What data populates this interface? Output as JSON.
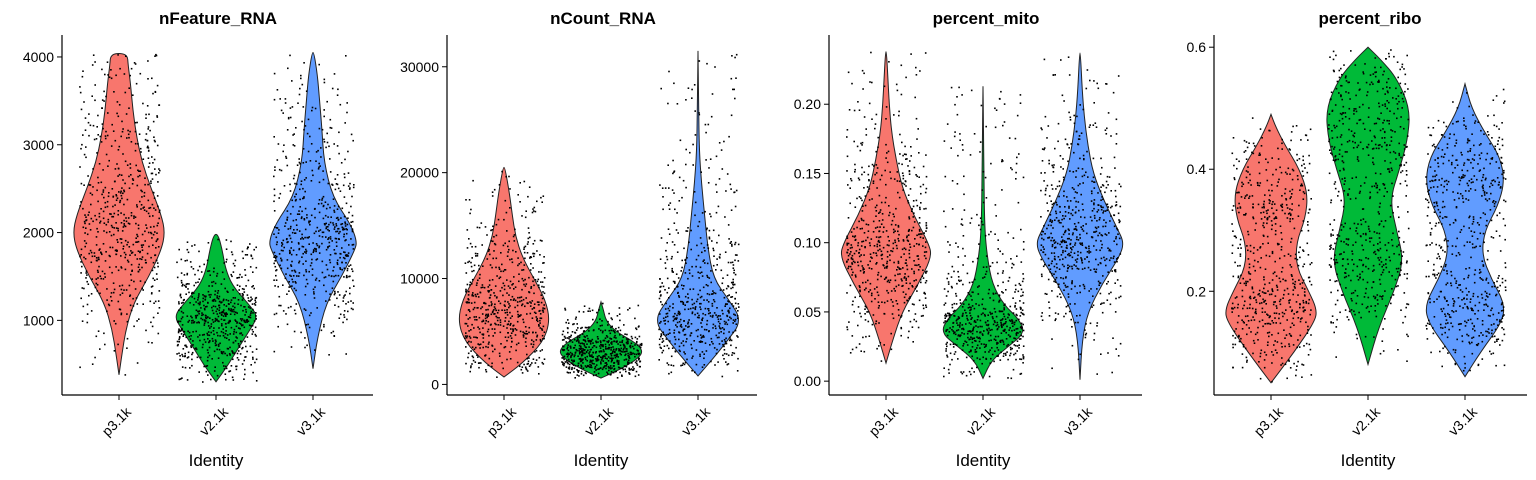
{
  "chart_data": [
    {
      "type": "violin",
      "title": "nFeature_RNA",
      "xlabel": "Identity",
      "ylabel": "",
      "categories": [
        "p3.1k",
        "v2.1k",
        "v3.1k"
      ],
      "colors": [
        "#F8766D",
        "#00BA38",
        "#619CFF"
      ],
      "ylim": [
        150,
        4250
      ],
      "yticks": [
        "1000",
        "2000",
        "3000",
        "4000"
      ],
      "ytick_values": [
        1000,
        2000,
        3000,
        4000
      ],
      "violins": [
        {
          "name": "p3.1k",
          "min": 380,
          "max": 4040,
          "profile": [
            [
              380,
              0.0
            ],
            [
              600,
              0.06
            ],
            [
              900,
              0.15
            ],
            [
              1200,
              0.32
            ],
            [
              1500,
              0.65
            ],
            [
              1800,
              0.92
            ],
            [
              2000,
              1.0
            ],
            [
              2200,
              0.92
            ],
            [
              2500,
              0.7
            ],
            [
              2800,
              0.5
            ],
            [
              3100,
              0.38
            ],
            [
              3400,
              0.3
            ],
            [
              3700,
              0.25
            ],
            [
              3900,
              0.2
            ],
            [
              4040,
              0.18
            ]
          ]
        },
        {
          "name": "v2.1k",
          "min": 300,
          "max": 1980,
          "profile": [
            [
              300,
              0.0
            ],
            [
              500,
              0.3
            ],
            [
              700,
              0.55
            ],
            [
              900,
              0.82
            ],
            [
              1050,
              1.0
            ],
            [
              1200,
              0.75
            ],
            [
              1400,
              0.38
            ],
            [
              1600,
              0.22
            ],
            [
              1800,
              0.15
            ],
            [
              1980,
              0.05
            ]
          ]
        },
        {
          "name": "v3.1k",
          "min": 450,
          "max": 4050,
          "profile": [
            [
              450,
              0.0
            ],
            [
              800,
              0.1
            ],
            [
              1200,
              0.3
            ],
            [
              1500,
              0.65
            ],
            [
              1800,
              0.95
            ],
            [
              1900,
              1.0
            ],
            [
              2100,
              0.85
            ],
            [
              2400,
              0.45
            ],
            [
              2800,
              0.25
            ],
            [
              3200,
              0.2
            ],
            [
              3500,
              0.15
            ],
            [
              3800,
              0.1
            ],
            [
              4050,
              0.02
            ]
          ]
        }
      ]
    },
    {
      "type": "violin",
      "title": "nCount_RNA",
      "xlabel": "Identity",
      "ylabel": "",
      "categories": [
        "p3.1k",
        "v2.1k",
        "v3.1k"
      ],
      "colors": [
        "#F8766D",
        "#00BA38",
        "#619CFF"
      ],
      "ylim": [
        -1000,
        33000
      ],
      "yticks": [
        "0",
        "10000",
        "20000",
        "30000"
      ],
      "ytick_values": [
        0,
        10000,
        20000,
        30000
      ],
      "violins": [
        {
          "name": "p3.1k",
          "min": 700,
          "max": 20500,
          "profile": [
            [
              700,
              0.0
            ],
            [
              2000,
              0.4
            ],
            [
              4000,
              0.85
            ],
            [
              6000,
              1.0
            ],
            [
              8000,
              0.9
            ],
            [
              10000,
              0.65
            ],
            [
              12000,
              0.4
            ],
            [
              14000,
              0.25
            ],
            [
              16000,
              0.18
            ],
            [
              18000,
              0.12
            ],
            [
              20500,
              0.02
            ]
          ]
        },
        {
          "name": "v2.1k",
          "min": 600,
          "max": 7800,
          "profile": [
            [
              600,
              0.0
            ],
            [
              1500,
              0.5
            ],
            [
              2500,
              0.9
            ],
            [
              3200,
              1.0
            ],
            [
              4000,
              0.8
            ],
            [
              5000,
              0.35
            ],
            [
              6000,
              0.12
            ],
            [
              7000,
              0.06
            ],
            [
              7800,
              0.0
            ]
          ]
        },
        {
          "name": "v3.1k",
          "min": 800,
          "max": 31500,
          "profile": [
            [
              800,
              0.0
            ],
            [
              2000,
              0.25
            ],
            [
              4000,
              0.65
            ],
            [
              6000,
              1.0
            ],
            [
              8000,
              0.7
            ],
            [
              10000,
              0.35
            ],
            [
              13000,
              0.22
            ],
            [
              16000,
              0.15
            ],
            [
              19000,
              0.08
            ],
            [
              22000,
              0.03
            ],
            [
              26000,
              0.015
            ],
            [
              31500,
              0.0
            ]
          ]
        }
      ]
    },
    {
      "type": "violin",
      "title": "percent_mito",
      "xlabel": "Identity",
      "ylabel": "",
      "categories": [
        "p3.1k",
        "v2.1k",
        "v3.1k"
      ],
      "colors": [
        "#F8766D",
        "#00BA38",
        "#619CFF"
      ],
      "ylim": [
        -0.01,
        0.25
      ],
      "yticks": [
        "0.00",
        "0.05",
        "0.10",
        "0.15",
        "0.20"
      ],
      "ytick_values": [
        0.0,
        0.05,
        0.1,
        0.15,
        0.2
      ],
      "violins": [
        {
          "name": "p3.1k",
          "min": 0.013,
          "max": 0.238,
          "profile": [
            [
              0.013,
              0.0
            ],
            [
              0.03,
              0.15
            ],
            [
              0.05,
              0.35
            ],
            [
              0.07,
              0.7
            ],
            [
              0.09,
              1.0
            ],
            [
              0.1,
              0.92
            ],
            [
              0.12,
              0.6
            ],
            [
              0.14,
              0.35
            ],
            [
              0.16,
              0.22
            ],
            [
              0.18,
              0.12
            ],
            [
              0.2,
              0.07
            ],
            [
              0.22,
              0.04
            ],
            [
              0.238,
              0.01
            ]
          ]
        },
        {
          "name": "v2.1k",
          "min": 0.002,
          "max": 0.213,
          "profile": [
            [
              0.002,
              0.0
            ],
            [
              0.015,
              0.2
            ],
            [
              0.025,
              0.6
            ],
            [
              0.035,
              1.0
            ],
            [
              0.045,
              0.85
            ],
            [
              0.055,
              0.5
            ],
            [
              0.07,
              0.22
            ],
            [
              0.09,
              0.1
            ],
            [
              0.11,
              0.04
            ],
            [
              0.15,
              0.02
            ],
            [
              0.19,
              0.01
            ],
            [
              0.213,
              0.0
            ]
          ]
        },
        {
          "name": "v3.1k",
          "min": 0.001,
          "max": 0.237,
          "profile": [
            [
              0.001,
              0.0
            ],
            [
              0.03,
              0.05
            ],
            [
              0.05,
              0.18
            ],
            [
              0.07,
              0.5
            ],
            [
              0.09,
              0.9
            ],
            [
              0.1,
              1.0
            ],
            [
              0.11,
              0.85
            ],
            [
              0.13,
              0.55
            ],
            [
              0.15,
              0.3
            ],
            [
              0.17,
              0.18
            ],
            [
              0.19,
              0.1
            ],
            [
              0.21,
              0.05
            ],
            [
              0.237,
              0.01
            ]
          ]
        }
      ]
    },
    {
      "type": "violin",
      "title": "percent_ribo",
      "xlabel": "Identity",
      "ylabel": "",
      "categories": [
        "p3.1k",
        "v2.1k",
        "v3.1k"
      ],
      "colors": [
        "#F8766D",
        "#00BA38",
        "#619CFF"
      ],
      "ylim": [
        0.03,
        0.62
      ],
      "yticks": [
        "0.2",
        "0.4",
        "0.6"
      ],
      "ytick_values": [
        0.2,
        0.4,
        0.6
      ],
      "violins": [
        {
          "name": "p3.1k",
          "min": 0.05,
          "max": 0.49,
          "profile": [
            [
              0.05,
              0.0
            ],
            [
              0.1,
              0.5
            ],
            [
              0.15,
              0.95
            ],
            [
              0.17,
              1.0
            ],
            [
              0.2,
              0.82
            ],
            [
              0.24,
              0.55
            ],
            [
              0.28,
              0.55
            ],
            [
              0.32,
              0.75
            ],
            [
              0.36,
              0.8
            ],
            [
              0.4,
              0.62
            ],
            [
              0.44,
              0.3
            ],
            [
              0.47,
              0.1
            ],
            [
              0.49,
              0.0
            ]
          ]
        },
        {
          "name": "v2.1k",
          "min": 0.08,
          "max": 0.6,
          "profile": [
            [
              0.08,
              0.0
            ],
            [
              0.14,
              0.25
            ],
            [
              0.2,
              0.62
            ],
            [
              0.25,
              0.85
            ],
            [
              0.3,
              0.68
            ],
            [
              0.35,
              0.52
            ],
            [
              0.4,
              0.75
            ],
            [
              0.45,
              0.95
            ],
            [
              0.5,
              1.0
            ],
            [
              0.55,
              0.68
            ],
            [
              0.58,
              0.3
            ],
            [
              0.6,
              0.0
            ]
          ]
        },
        {
          "name": "v3.1k",
          "min": 0.06,
          "max": 0.54,
          "profile": [
            [
              0.06,
              0.0
            ],
            [
              0.1,
              0.35
            ],
            [
              0.15,
              0.85
            ],
            [
              0.18,
              0.9
            ],
            [
              0.22,
              0.6
            ],
            [
              0.26,
              0.38
            ],
            [
              0.3,
              0.45
            ],
            [
              0.34,
              0.75
            ],
            [
              0.38,
              0.9
            ],
            [
              0.42,
              0.8
            ],
            [
              0.46,
              0.45
            ],
            [
              0.5,
              0.15
            ],
            [
              0.54,
              0.0
            ]
          ]
        }
      ]
    }
  ]
}
